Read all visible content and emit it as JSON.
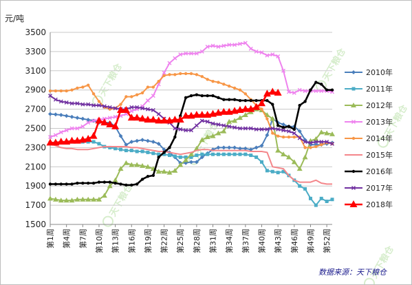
{
  "chart_data": {
    "type": "line",
    "unit_label": "元/吨",
    "source_note": "数据来源：天下粮仓",
    "watermark": "天下粮仓",
    "ylim": [
      1500,
      3500
    ],
    "yticks": [
      1500,
      1700,
      1900,
      2100,
      2300,
      2500,
      2700,
      2900,
      3100,
      3300,
      3500
    ],
    "x": [
      1,
      2,
      3,
      4,
      5,
      6,
      7,
      8,
      9,
      10,
      11,
      12,
      13,
      14,
      15,
      16,
      17,
      18,
      19,
      20,
      21,
      22,
      23,
      24,
      25,
      26,
      27,
      28,
      29,
      30,
      31,
      32,
      33,
      34,
      35,
      36,
      37,
      38,
      39,
      40,
      41,
      42,
      43,
      44,
      45,
      46,
      47,
      48,
      49,
      50,
      51,
      52,
      53
    ],
    "xtick_labels": [
      "第1周",
      "第4周",
      "第7周",
      "第10周",
      "第13周",
      "第16周",
      "第19周",
      "第22周",
      "第25周",
      "第28周",
      "第31周",
      "第34周",
      "第37周",
      "第40周",
      "第43周",
      "第46周",
      "第49周",
      "第52周"
    ],
    "xtick_weeks": [
      1,
      4,
      7,
      10,
      13,
      16,
      19,
      22,
      25,
      28,
      31,
      34,
      37,
      40,
      43,
      46,
      49,
      52
    ],
    "grid": "horizontal",
    "legend_position": "right",
    "series": [
      {
        "name": "2010年",
        "color": "#4a7ebb",
        "marker": "diamond",
        "values": [
          2650,
          2645,
          2640,
          2630,
          2620,
          2610,
          2600,
          2590,
          2580,
          2560,
          2560,
          2560,
          2520,
          2420,
          2330,
          2360,
          2370,
          2380,
          2370,
          2360,
          2340,
          2280,
          2250,
          2200,
          2140,
          2140,
          2150,
          2150,
          2200,
          2240,
          2280,
          2300,
          2300,
          2300,
          2300,
          2290,
          2290,
          2280,
          2300,
          2320,
          2430,
          2600,
          2560,
          2540,
          2520,
          2520,
          2470,
          2380,
          2330,
          2330,
          2330,
          2340,
          2350
        ]
      },
      {
        "name": "2011年",
        "color": "#4bacc6",
        "marker": "square",
        "values": [
          2350,
          2350,
          2350,
          2350,
          2360,
          2360,
          2360,
          2360,
          2360,
          2340,
          2310,
          2300,
          2290,
          2280,
          2270,
          2270,
          2260,
          2260,
          2250,
          2240,
          2230,
          2230,
          2220,
          2210,
          2200,
          2200,
          2200,
          2220,
          2230,
          2230,
          2230,
          2230,
          2230,
          2230,
          2230,
          2230,
          2230,
          2220,
          2200,
          2150,
          2060,
          2050,
          2040,
          2050,
          2010,
          1960,
          1900,
          1870,
          1770,
          1700,
          1770,
          1740,
          1760
        ]
      },
      {
        "name": "2012年",
        "color": "#9bbb59",
        "marker": "triangle",
        "values": [
          1770,
          1760,
          1750,
          1750,
          1750,
          1760,
          1760,
          1760,
          1760,
          1760,
          1800,
          1900,
          1960,
          2080,
          2140,
          2120,
          2120,
          2110,
          2100,
          2080,
          2050,
          2050,
          2040,
          2060,
          2120,
          2170,
          2230,
          2290,
          2380,
          2410,
          2420,
          2450,
          2470,
          2570,
          2580,
          2610,
          2640,
          2670,
          2700,
          2690,
          2640,
          2600,
          2270,
          2230,
          2200,
          2150,
          2080,
          2200,
          2370,
          2390,
          2460,
          2450,
          2440
        ]
      },
      {
        "name": "2013年",
        "color": "#ee82ee",
        "marker": "x",
        "values": [
          2410,
          2430,
          2460,
          2480,
          2500,
          2500,
          2520,
          2560,
          2580,
          2590,
          2600,
          2610,
          2620,
          2630,
          2650,
          2680,
          2700,
          2730,
          2790,
          2840,
          2960,
          3080,
          3180,
          3230,
          3270,
          3280,
          3280,
          3280,
          3300,
          3350,
          3360,
          3350,
          3360,
          3370,
          3370,
          3380,
          3390,
          3330,
          3300,
          3290,
          3260,
          3270,
          3250,
          3100,
          2880,
          2870,
          2900,
          2890,
          2890,
          2890,
          2890,
          2890,
          2880
        ]
      },
      {
        "name": "2014年",
        "color": "#f79646",
        "marker": "circle",
        "values": [
          2890,
          2890,
          2890,
          2890,
          2900,
          2920,
          2930,
          2950,
          2860,
          2780,
          2720,
          2700,
          2710,
          2750,
          2830,
          2830,
          2850,
          2870,
          2930,
          2930,
          2990,
          3050,
          3060,
          3060,
          3070,
          3070,
          3070,
          3060,
          3040,
          3010,
          2990,
          2980,
          2960,
          2940,
          2920,
          2900,
          2860,
          2800,
          2740,
          2700,
          2600,
          2450,
          2420,
          2410,
          2410,
          2410,
          2410,
          2300,
          2300,
          2310,
          2330,
          2350,
          2340
        ]
      },
      {
        "name": "2015年",
        "color": "#f4868a",
        "marker": "line",
        "values": [
          2340,
          2320,
          2300,
          2290,
          2290,
          2280,
          2280,
          2280,
          2290,
          2300,
          2310,
          2310,
          2310,
          2310,
          2310,
          2300,
          2300,
          2290,
          2280,
          2270,
          2260,
          2260,
          2250,
          2240,
          2230,
          2240,
          2250,
          2270,
          2280,
          2280,
          2270,
          2270,
          2270,
          2270,
          2270,
          2270,
          2270,
          2260,
          2260,
          2260,
          2250,
          2100,
          2090,
          2080,
          2010,
          1960,
          1940,
          1940,
          1940,
          1960,
          1930,
          1920,
          1920
        ]
      },
      {
        "name": "2016年",
        "color": "#000000",
        "marker": "circle",
        "values": [
          1920,
          1920,
          1920,
          1920,
          1920,
          1930,
          1930,
          1930,
          1930,
          1940,
          1940,
          1940,
          1930,
          1920,
          1910,
          1910,
          1920,
          1970,
          2000,
          2010,
          2200,
          2250,
          2300,
          2410,
          2630,
          2820,
          2840,
          2850,
          2840,
          2840,
          2840,
          2820,
          2800,
          2800,
          2800,
          2790,
          2790,
          2790,
          2790,
          2790,
          2790,
          2750,
          2530,
          2510,
          2520,
          2490,
          2740,
          2780,
          2900,
          2980,
          2960,
          2900,
          2900
        ]
      },
      {
        "name": "2017年",
        "color": "#7030a0",
        "marker": "x",
        "values": [
          2840,
          2800,
          2780,
          2770,
          2760,
          2760,
          2750,
          2750,
          2740,
          2740,
          2730,
          2720,
          2710,
          2700,
          2700,
          2720,
          2720,
          2710,
          2700,
          2690,
          2650,
          2600,
          2560,
          2500,
          2490,
          2480,
          2480,
          2530,
          2580,
          2570,
          2550,
          2540,
          2530,
          2520,
          2510,
          2500,
          2500,
          2500,
          2490,
          2490,
          2490,
          2500,
          2490,
          2480,
          2470,
          2450,
          2400,
          2360,
          2350,
          2360,
          2360,
          2360,
          2340
        ]
      },
      {
        "name": "2018年",
        "color": "#ff0000",
        "marker": "triangle",
        "values": [
          2350,
          2350,
          2360,
          2360,
          2370,
          2370,
          2380,
          2390,
          2420,
          2580,
          2560,
          2540,
          2520,
          2690,
          2690,
          2610,
          2610,
          2600,
          2590,
          2590,
          2580,
          2580,
          2580,
          2590,
          2590,
          2630,
          2630,
          2640,
          2640,
          2640,
          2650,
          2660,
          2670,
          2670,
          2680,
          2690,
          2700,
          2700,
          2720,
          2760,
          2860,
          2880,
          2870,
          null,
          null,
          null,
          null,
          null,
          null,
          null,
          null,
          null,
          null
        ]
      }
    ]
  }
}
